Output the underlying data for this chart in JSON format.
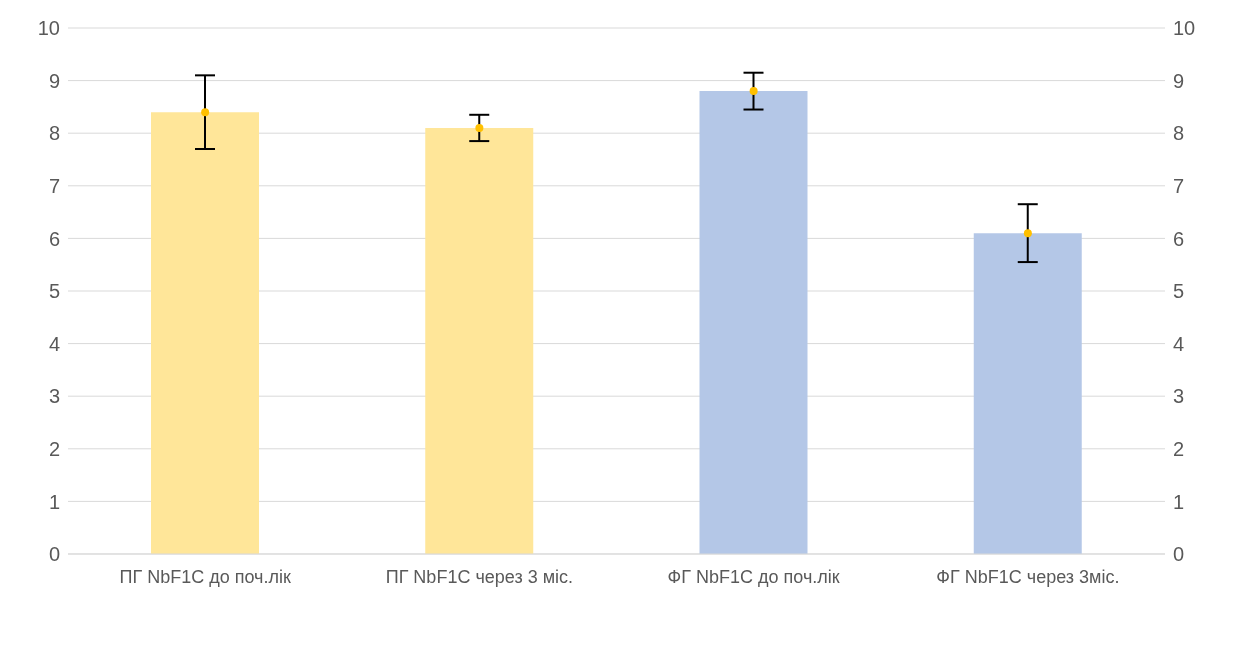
{
  "chart_data": {
    "type": "bar",
    "categories": [
      "ПГ NbF1C до поч.лік",
      "ПГ NbF1C через 3 міс.",
      "ФГ NbF1C до поч.лік",
      "ФГ NbF1C через 3міс."
    ],
    "series": [
      {
        "colors": [
          "#ffe699",
          "#ffe699",
          "#b4c7e7",
          "#b4c7e7"
        ],
        "values": [
          8.4,
          8.1,
          8.8,
          6.1
        ],
        "errors": [
          0.7,
          0.25,
          0.35,
          0.55
        ]
      },
      {
        "type": "scatter",
        "color": "#ffc000",
        "values": [
          8.4,
          8.1,
          8.8,
          6.1
        ],
        "marker": "circle"
      }
    ],
    "ylim": [
      0,
      10
    ],
    "yticks": [
      0,
      1,
      2,
      3,
      4,
      5,
      6,
      7,
      8,
      9,
      10
    ],
    "y2lim": [
      0,
      10
    ],
    "y2ticks": [
      0,
      1,
      2,
      3,
      4,
      5,
      6,
      7,
      8,
      9,
      10
    ],
    "grid": "y"
  }
}
